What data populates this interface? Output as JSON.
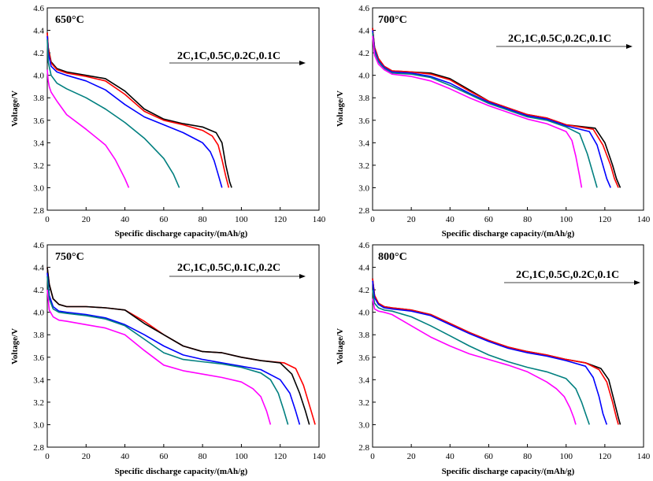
{
  "chart_data": [
    {
      "type": "line",
      "title": "650°C",
      "xlabel": "Specific discharge capacity/(mAh/g)",
      "ylabel": "Voltage/V",
      "xlim": [
        0,
        140
      ],
      "ylim": [
        2.8,
        4.6
      ],
      "xticks": [
        "0",
        "20",
        "40",
        "60",
        "80",
        "100",
        "120",
        "140"
      ],
      "yticks": [
        "2.8",
        "3.0",
        "3.2",
        "3.4",
        "3.6",
        "3.8",
        "4.0",
        "4.2",
        "4.4",
        "4.6"
      ],
      "legend_text": "2C,1C,0.5C,0.2C,0.1C",
      "series": [
        {
          "name": "0.1C",
          "color": "#000000",
          "x": [
            0,
            0.5,
            2,
            5,
            10,
            20,
            30,
            40,
            50,
            60,
            70,
            80,
            87,
            90,
            92,
            94,
            95
          ],
          "y": [
            4.38,
            4.25,
            4.12,
            4.06,
            4.03,
            4.0,
            3.97,
            3.86,
            3.7,
            3.61,
            3.57,
            3.54,
            3.49,
            3.4,
            3.2,
            3.05,
            3.0
          ]
        },
        {
          "name": "0.2C",
          "color": "#ff0000",
          "x": [
            0,
            0.5,
            2,
            5,
            10,
            20,
            30,
            40,
            50,
            60,
            70,
            80,
            85,
            88,
            90,
            92,
            93.5
          ],
          "y": [
            4.38,
            4.24,
            4.11,
            4.05,
            4.02,
            3.99,
            3.95,
            3.83,
            3.68,
            3.6,
            3.56,
            3.51,
            3.46,
            3.38,
            3.25,
            3.1,
            3.0
          ]
        },
        {
          "name": "0.5C",
          "color": "#0000ff",
          "x": [
            0,
            0.5,
            2,
            5,
            10,
            20,
            30,
            40,
            50,
            60,
            70,
            80,
            84,
            86,
            88,
            90
          ],
          "y": [
            4.35,
            4.2,
            4.08,
            4.03,
            4.0,
            3.95,
            3.87,
            3.74,
            3.63,
            3.56,
            3.49,
            3.4,
            3.32,
            3.24,
            3.12,
            3.0
          ]
        },
        {
          "name": "1C",
          "color": "#007f7f",
          "x": [
            0,
            0.5,
            2,
            5,
            10,
            20,
            30,
            40,
            50,
            60,
            65,
            68
          ],
          "y": [
            4.32,
            4.12,
            4.0,
            3.93,
            3.88,
            3.8,
            3.7,
            3.58,
            3.44,
            3.26,
            3.12,
            3.0
          ]
        },
        {
          "name": "2C",
          "color": "#ff00ff",
          "x": [
            0,
            0.5,
            1,
            2,
            5,
            10,
            20,
            30,
            35,
            40,
            42
          ],
          "y": [
            4.05,
            3.95,
            3.9,
            3.85,
            3.77,
            3.65,
            3.52,
            3.38,
            3.25,
            3.08,
            3.0
          ]
        }
      ]
    },
    {
      "type": "line",
      "title": "700°C",
      "xlabel": "Specific discharge capacity/(mAh/g)",
      "ylabel": "Voltage/V",
      "xlim": [
        0,
        140
      ],
      "ylim": [
        2.8,
        4.6
      ],
      "xticks": [
        "0",
        "20",
        "40",
        "60",
        "80",
        "100",
        "120",
        "140"
      ],
      "yticks": [
        "2.8",
        "3.0",
        "3.2",
        "3.4",
        "3.6",
        "3.8",
        "4.0",
        "4.2",
        "4.4",
        "4.6"
      ],
      "legend_text": "2C,1C,0.5C,0.2C,0.1C",
      "series": [
        {
          "name": "0.1C",
          "color": "#000000",
          "x": [
            0,
            1,
            3,
            6,
            10,
            20,
            30,
            40,
            50,
            60,
            70,
            80,
            90,
            100,
            115,
            120,
            124,
            126,
            128
          ],
          "y": [
            4.42,
            4.25,
            4.15,
            4.08,
            4.04,
            4.03,
            4.02,
            3.97,
            3.87,
            3.77,
            3.71,
            3.65,
            3.62,
            3.56,
            3.53,
            3.4,
            3.2,
            3.08,
            3.0
          ]
        },
        {
          "name": "0.2C",
          "color": "#ff0000",
          "x": [
            0,
            1,
            3,
            6,
            10,
            20,
            30,
            40,
            50,
            60,
            70,
            80,
            90,
            100,
            114,
            119,
            123,
            125,
            127
          ],
          "y": [
            4.42,
            4.25,
            4.15,
            4.08,
            4.04,
            4.03,
            4.01,
            3.96,
            3.86,
            3.77,
            3.71,
            3.65,
            3.62,
            3.56,
            3.52,
            3.38,
            3.2,
            3.08,
            3.0
          ]
        },
        {
          "name": "0.5C",
          "color": "#0000ff",
          "x": [
            0,
            1,
            3,
            6,
            10,
            20,
            30,
            40,
            50,
            60,
            70,
            80,
            90,
            100,
            112,
            116,
            119,
            121,
            123
          ],
          "y": [
            4.4,
            4.23,
            4.13,
            4.07,
            4.03,
            4.02,
            3.99,
            3.93,
            3.84,
            3.76,
            3.7,
            3.64,
            3.61,
            3.55,
            3.5,
            3.38,
            3.2,
            3.08,
            3.0
          ]
        },
        {
          "name": "1C",
          "color": "#007f7f",
          "x": [
            0,
            1,
            3,
            6,
            10,
            20,
            30,
            40,
            50,
            60,
            70,
            80,
            90,
            100,
            107,
            111,
            114,
            116
          ],
          "y": [
            4.38,
            4.21,
            4.12,
            4.06,
            4.02,
            4.01,
            3.98,
            3.91,
            3.83,
            3.75,
            3.69,
            3.63,
            3.6,
            3.54,
            3.48,
            3.3,
            3.12,
            3.0
          ]
        },
        {
          "name": "2C",
          "color": "#ff00ff",
          "x": [
            0,
            1,
            3,
            6,
            10,
            20,
            30,
            40,
            50,
            60,
            70,
            80,
            90,
            100,
            103,
            105,
            107,
            108
          ],
          "y": [
            4.35,
            4.18,
            4.1,
            4.05,
            4.01,
            3.99,
            3.95,
            3.88,
            3.8,
            3.73,
            3.67,
            3.61,
            3.57,
            3.5,
            3.42,
            3.28,
            3.1,
            3.0
          ]
        }
      ]
    },
    {
      "type": "line",
      "title": "750°C",
      "xlabel": "Specific discharge capacity/(mAh/g)",
      "ylabel": "Voltage/V",
      "xlim": [
        0,
        140
      ],
      "ylim": [
        2.8,
        4.6
      ],
      "xticks": [
        "0",
        "20",
        "40",
        "60",
        "80",
        "100",
        "120",
        "140"
      ],
      "yticks": [
        "2.8",
        "3.0",
        "3.2",
        "3.4",
        "3.6",
        "3.8",
        "4.0",
        "4.2",
        "4.4",
        "4.6"
      ],
      "legend_text": "2C,1C,0.5C,0.1C,0.2C",
      "series": [
        {
          "name": "0.2C",
          "color": "#ff0000",
          "x": [
            0,
            1,
            3,
            6,
            10,
            20,
            30,
            40,
            50,
            60,
            70,
            80,
            90,
            100,
            110,
            122,
            128,
            132,
            136,
            138
          ],
          "y": [
            4.4,
            4.25,
            4.12,
            4.07,
            4.05,
            4.05,
            4.04,
            4.02,
            3.92,
            3.8,
            3.7,
            3.65,
            3.64,
            3.6,
            3.57,
            3.55,
            3.5,
            3.35,
            3.12,
            3.0
          ]
        },
        {
          "name": "0.1C",
          "color": "#000000",
          "x": [
            0,
            1,
            3,
            6,
            10,
            20,
            30,
            40,
            50,
            60,
            70,
            80,
            90,
            100,
            110,
            120,
            126,
            130,
            133,
            135
          ],
          "y": [
            4.4,
            4.25,
            4.12,
            4.07,
            4.05,
            4.05,
            4.04,
            4.02,
            3.9,
            3.8,
            3.7,
            3.65,
            3.64,
            3.6,
            3.57,
            3.55,
            3.45,
            3.28,
            3.12,
            3.0
          ]
        },
        {
          "name": "0.5C",
          "color": "#0000ff",
          "x": [
            0,
            1,
            3,
            6,
            10,
            20,
            30,
            40,
            50,
            60,
            70,
            80,
            90,
            100,
            110,
            120,
            125,
            128,
            130
          ],
          "y": [
            4.35,
            4.15,
            4.05,
            4.01,
            4.0,
            3.98,
            3.95,
            3.89,
            3.8,
            3.7,
            3.62,
            3.58,
            3.55,
            3.52,
            3.49,
            3.4,
            3.28,
            3.12,
            3.0
          ]
        },
        {
          "name": "1C",
          "color": "#007f7f",
          "x": [
            0,
            1,
            3,
            6,
            10,
            20,
            30,
            40,
            50,
            60,
            70,
            80,
            90,
            100,
            110,
            115,
            119,
            122,
            124
          ],
          "y": [
            4.32,
            4.12,
            4.03,
            4.0,
            3.99,
            3.97,
            3.94,
            3.88,
            3.76,
            3.64,
            3.58,
            3.56,
            3.54,
            3.51,
            3.46,
            3.4,
            3.28,
            3.12,
            3.0
          ]
        },
        {
          "name": "2C",
          "color": "#ff00ff",
          "x": [
            0,
            1,
            3,
            6,
            10,
            20,
            30,
            40,
            50,
            60,
            70,
            80,
            90,
            100,
            106,
            110,
            113,
            115
          ],
          "y": [
            4.2,
            4.02,
            3.96,
            3.93,
            3.92,
            3.89,
            3.86,
            3.8,
            3.66,
            3.53,
            3.48,
            3.45,
            3.42,
            3.38,
            3.32,
            3.25,
            3.12,
            3.0
          ]
        }
      ]
    },
    {
      "type": "line",
      "title": "800°C",
      "xlabel": "Specific discharge capacity/(mAh/g)",
      "ylabel": "Voltage/V",
      "xlim": [
        0,
        140
      ],
      "ylim": [
        2.8,
        4.6
      ],
      "xticks": [
        "0",
        "20",
        "40",
        "60",
        "80",
        "100",
        "120",
        "140"
      ],
      "yticks": [
        "2.8",
        "3.0",
        "3.2",
        "3.4",
        "3.6",
        "3.8",
        "4.0",
        "4.2",
        "4.4",
        "4.6"
      ],
      "legend_text": "2C,1C,0.5C,0.2C,0.1C",
      "series": [
        {
          "name": "0.1C",
          "color": "#000000",
          "x": [
            0,
            1,
            3,
            6,
            10,
            20,
            30,
            40,
            50,
            60,
            70,
            80,
            90,
            100,
            110,
            118,
            122,
            125,
            127,
            128
          ],
          "y": [
            4.3,
            4.15,
            4.08,
            4.05,
            4.04,
            4.02,
            3.98,
            3.9,
            3.82,
            3.75,
            3.69,
            3.65,
            3.62,
            3.58,
            3.55,
            3.5,
            3.4,
            3.2,
            3.06,
            3.0
          ]
        },
        {
          "name": "0.2C",
          "color": "#ff0000",
          "x": [
            0,
            1,
            3,
            6,
            10,
            20,
            30,
            40,
            50,
            60,
            70,
            80,
            90,
            100,
            110,
            117,
            121,
            124,
            126,
            127
          ],
          "y": [
            4.3,
            4.15,
            4.08,
            4.05,
            4.04,
            4.02,
            3.98,
            3.9,
            3.82,
            3.75,
            3.69,
            3.65,
            3.62,
            3.58,
            3.55,
            3.49,
            3.38,
            3.2,
            3.06,
            3.0
          ]
        },
        {
          "name": "0.5C",
          "color": "#0000ff",
          "x": [
            0,
            1,
            3,
            6,
            10,
            20,
            30,
            40,
            50,
            60,
            70,
            80,
            90,
            100,
            110,
            114,
            117,
            119,
            121
          ],
          "y": [
            4.28,
            4.13,
            4.07,
            4.04,
            4.03,
            4.01,
            3.97,
            3.89,
            3.81,
            3.74,
            3.68,
            3.64,
            3.61,
            3.57,
            3.52,
            3.42,
            3.25,
            3.1,
            3.0
          ]
        },
        {
          "name": "1C",
          "color": "#007f7f",
          "x": [
            0,
            1,
            3,
            6,
            10,
            20,
            30,
            40,
            50,
            60,
            70,
            80,
            90,
            100,
            105,
            108,
            110,
            112
          ],
          "y": [
            4.2,
            4.08,
            4.04,
            4.02,
            4.01,
            3.96,
            3.88,
            3.79,
            3.7,
            3.62,
            3.56,
            3.51,
            3.47,
            3.41,
            3.32,
            3.2,
            3.1,
            3.0
          ]
        },
        {
          "name": "2C",
          "color": "#ff00ff",
          "x": [
            0,
            1,
            3,
            6,
            10,
            20,
            30,
            40,
            50,
            60,
            70,
            80,
            90,
            95,
            99,
            102,
            104,
            105
          ],
          "y": [
            4.12,
            4.03,
            4.01,
            4.0,
            3.98,
            3.88,
            3.78,
            3.7,
            3.63,
            3.58,
            3.53,
            3.47,
            3.38,
            3.32,
            3.25,
            3.15,
            3.06,
            3.0
          ]
        }
      ]
    }
  ]
}
